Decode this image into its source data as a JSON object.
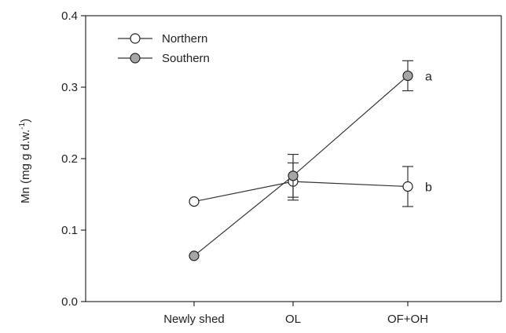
{
  "chart_data": {
    "type": "line",
    "categories": [
      "Newly shed",
      "OL",
      "OF+OH"
    ],
    "ylabel": {
      "main": "Mn (mg g d.w.",
      "sup": "-1",
      "close": ")"
    },
    "ylim": [
      0.0,
      0.4
    ],
    "yticks": [
      {
        "value": 0.0,
        "label": "0.0"
      },
      {
        "value": 0.1,
        "label": "0.1"
      },
      {
        "value": 0.2,
        "label": "0.2"
      },
      {
        "value": 0.3,
        "label": "0.3"
      },
      {
        "value": 0.4,
        "label": "0.4"
      }
    ],
    "legend_position": "top-left",
    "series": [
      {
        "name": "Northern",
        "marker_fill": "#ffffff",
        "values": [
          0.14,
          0.168,
          0.161
        ],
        "errors": [
          null,
          0.026,
          0.028
        ],
        "annotation": {
          "category_index": 2,
          "text": "b"
        }
      },
      {
        "name": "Southern",
        "marker_fill": "#a6a6a6",
        "values": [
          0.064,
          0.176,
          0.316
        ],
        "errors": [
          null,
          0.03,
          0.021
        ],
        "annotation": {
          "category_index": 2,
          "text": "a"
        }
      }
    ],
    "colors": {
      "line": "#333333",
      "marker_stroke": "#222222",
      "axis": "#000000"
    }
  }
}
